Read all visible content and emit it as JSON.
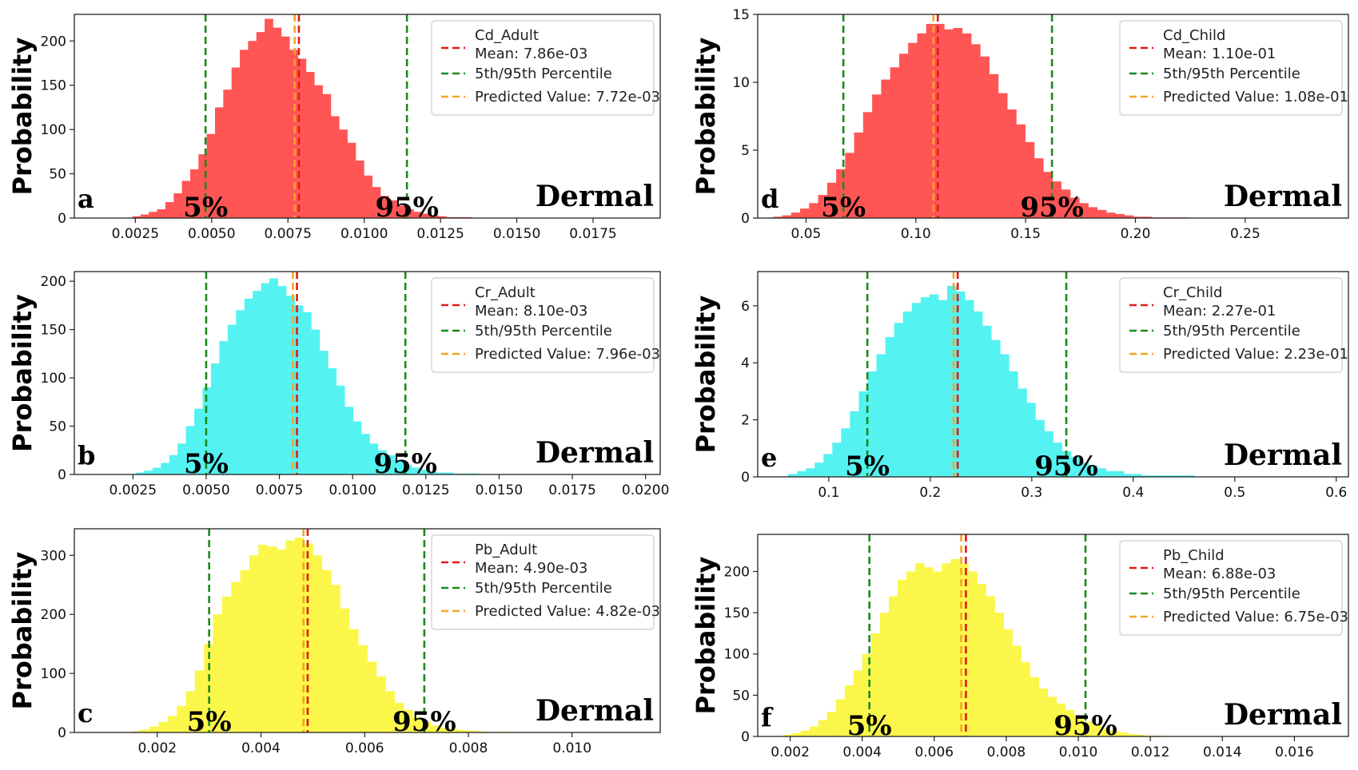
{
  "chart_data": [
    {
      "type": "histogram",
      "panel_letter": "a",
      "ylabel": "Probability",
      "corner_text": "Dermal",
      "p5_text": "5%",
      "p95_text": "95%",
      "bar_color": "#ff5555",
      "legend": {
        "title": "Cd_Adult",
        "mean_label": "Mean: 7.86e-03",
        "pct_label": "5th/95th Percentile",
        "pred_label": "Predicted Value: 7.72e-03"
      },
      "mean": 0.00786,
      "p5": 0.0048,
      "p95": 0.0114,
      "predicted": 0.00772,
      "xlim": [
        0.0005,
        0.0197
      ],
      "ylim": [
        0,
        230
      ],
      "xticks": [
        0.0025,
        0.005,
        0.0075,
        0.01,
        0.0125,
        0.015,
        0.0175
      ],
      "xtick_labels": [
        "0.0025",
        "0.0050",
        "0.0075",
        "0.0100",
        "0.0125",
        "0.0150",
        "0.0175"
      ],
      "yticks": [
        0,
        50,
        100,
        150,
        200
      ],
      "ytick_labels": [
        "0",
        "50",
        "100",
        "150",
        "200"
      ],
      "bin_start": 0.0024,
      "bin_width": 0.000271,
      "values": [
        2,
        4,
        7,
        10,
        18,
        28,
        42,
        55,
        72,
        95,
        125,
        145,
        170,
        190,
        200,
        210,
        225,
        215,
        205,
        190,
        180,
        165,
        150,
        140,
        115,
        100,
        85,
        65,
        48,
        35,
        25,
        20,
        14,
        10,
        7,
        5,
        3,
        2,
        1,
        1,
        1
      ]
    },
    {
      "type": "histogram",
      "panel_letter": "b",
      "ylabel": "Probability",
      "corner_text": "Dermal",
      "p5_text": "5%",
      "p95_text": "95%",
      "bar_color": "#55f2f2",
      "legend": {
        "title": "Cr_Adult",
        "mean_label": "Mean: 8.10e-03",
        "pct_label": "5th/95th Percentile",
        "pred_label": "Predicted Value: 7.96e-03"
      },
      "mean": 0.0081,
      "p5": 0.005,
      "p95": 0.0118,
      "predicted": 0.00796,
      "xlim": [
        0.0005,
        0.0205
      ],
      "ylim": [
        0,
        210
      ],
      "xticks": [
        0.0025,
        0.005,
        0.0075,
        0.01,
        0.0125,
        0.015,
        0.0175,
        0.02
      ],
      "xtick_labels": [
        "0.0025",
        "0.0050",
        "0.0075",
        "0.0100",
        "0.0125",
        "0.0150",
        "0.0175",
        "0.0200"
      ],
      "yticks": [
        0,
        50,
        100,
        150,
        200
      ],
      "ytick_labels": [
        "0",
        "50",
        "100",
        "150",
        "200"
      ],
      "bin_start": 0.0026,
      "bin_width": 0.000285,
      "values": [
        2,
        4,
        7,
        12,
        20,
        32,
        50,
        68,
        90,
        115,
        138,
        155,
        170,
        182,
        190,
        198,
        203,
        195,
        185,
        175,
        168,
        150,
        128,
        110,
        92,
        70,
        55,
        42,
        32,
        25,
        20,
        15,
        10,
        7,
        5,
        3,
        2,
        2,
        1,
        1,
        1
      ]
    },
    {
      "type": "histogram",
      "panel_letter": "c",
      "ylabel": "Probability",
      "corner_text": "Dermal",
      "p5_text": "5%",
      "p95_text": "95%",
      "bar_color": "#fbf74a",
      "legend": {
        "title": "Pb_Adult",
        "mean_label": "Mean: 4.90e-03",
        "pct_label": "5th/95th Percentile",
        "pred_label": "Predicted Value: 4.82e-03"
      },
      "mean": 0.0049,
      "p5": 0.003,
      "p95": 0.00715,
      "predicted": 0.00482,
      "xlim": [
        0.0004,
        0.0117
      ],
      "ylim": [
        0,
        345
      ],
      "xticks": [
        0.002,
        0.004,
        0.006,
        0.008,
        0.01
      ],
      "xtick_labels": [
        "0.002",
        "0.004",
        "0.006",
        "0.008",
        "0.010"
      ],
      "yticks": [
        0,
        100,
        200,
        300
      ],
      "ytick_labels": [
        "0",
        "100",
        "200",
        "300"
      ],
      "bin_start": 0.0015,
      "bin_width": 0.000175,
      "values": [
        2,
        5,
        10,
        18,
        28,
        45,
        70,
        105,
        150,
        200,
        230,
        255,
        275,
        300,
        318,
        315,
        310,
        325,
        330,
        320,
        300,
        275,
        250,
        210,
        175,
        148,
        120,
        95,
        70,
        50,
        38,
        26,
        18,
        12,
        8,
        6,
        4,
        3,
        2,
        1,
        1,
        1
      ]
    },
    {
      "type": "histogram",
      "panel_letter": "d",
      "ylabel": "Probability",
      "corner_text": "Dermal",
      "p5_text": "5%",
      "p95_text": "95%",
      "bar_color": "#ff5555",
      "legend": {
        "title": "Cd_Child",
        "mean_label": "Mean: 1.10e-01",
        "pct_label": "5th/95th Percentile",
        "pred_label": "Predicted Value: 1.08e-01"
      },
      "mean": 0.11,
      "p5": 0.067,
      "p95": 0.162,
      "predicted": 0.108,
      "xlim": [
        0.028,
        0.297
      ],
      "ylim": [
        0,
        15
      ],
      "xticks": [
        0.05,
        0.1,
        0.15,
        0.2,
        0.25
      ],
      "xtick_labels": [
        "0.05",
        "0.10",
        "0.15",
        "0.20",
        "0.25"
      ],
      "yticks": [
        0,
        5,
        10,
        15
      ],
      "ytick_labels": [
        "0",
        "5",
        "10",
        "15"
      ],
      "bin_start": 0.035,
      "bin_width": 0.0041,
      "values": [
        0.1,
        0.2,
        0.4,
        0.7,
        1.1,
        1.7,
        2.6,
        3.6,
        4.8,
        6.3,
        7.8,
        9.1,
        10.2,
        11.1,
        12.1,
        12.9,
        13.6,
        14.3,
        14.3,
        13.9,
        14.0,
        13.6,
        12.8,
        11.9,
        10.6,
        9.2,
        8.0,
        6.9,
        5.6,
        4.4,
        3.4,
        2.7,
        2.1,
        1.5,
        1.1,
        0.8,
        0.6,
        0.4,
        0.3,
        0.2,
        0.1,
        0.1,
        0.05,
        0.05,
        0.05,
        0.05
      ]
    },
    {
      "type": "histogram",
      "panel_letter": "e",
      "ylabel": "Probability",
      "corner_text": "Dermal",
      "p5_text": "5%",
      "p95_text": "95%",
      "bar_color": "#55f2f2",
      "legend": {
        "title": "Cr_Child",
        "mean_label": "Mean: 2.27e-01",
        "pct_label": "5th/95th Percentile",
        "pred_label": "Predicted Value: 2.23e-01"
      },
      "mean": 0.227,
      "p5": 0.138,
      "p95": 0.334,
      "predicted": 0.223,
      "xlim": [
        0.03,
        0.612
      ],
      "ylim": [
        0,
        7.2
      ],
      "xticks": [
        0.1,
        0.2,
        0.3,
        0.4,
        0.5,
        0.6
      ],
      "xtick_labels": [
        "0.1",
        "0.2",
        "0.3",
        "0.4",
        "0.5",
        "0.6"
      ],
      "yticks": [
        0,
        2,
        4,
        6
      ],
      "ytick_labels": [
        "0",
        "2",
        "4",
        "6"
      ],
      "bin_start": 0.06,
      "bin_width": 0.0087,
      "values": [
        0.1,
        0.2,
        0.3,
        0.5,
        0.8,
        1.2,
        1.7,
        2.3,
        3.0,
        3.7,
        4.3,
        4.9,
        5.4,
        5.8,
        6.1,
        6.3,
        6.4,
        6.2,
        6.7,
        6.5,
        6.2,
        5.8,
        5.3,
        4.8,
        4.3,
        3.7,
        3.1,
        2.6,
        2.0,
        1.6,
        1.2,
        0.9,
        0.7,
        0.5,
        0.4,
        0.3,
        0.2,
        0.2,
        0.1,
        0.1,
        0.05,
        0.05,
        0.05,
        0.05,
        0.05,
        0.05
      ]
    },
    {
      "type": "histogram",
      "panel_letter": "f",
      "ylabel": "Probability",
      "corner_text": "Dermal",
      "p5_text": "5%",
      "p95_text": "95%",
      "bar_color": "#fbf74a",
      "legend": {
        "title": "Pb_Child",
        "mean_label": "Mean: 6.88e-03",
        "pct_label": "5th/95th Percentile",
        "pred_label": "Predicted Value: 6.75e-03"
      },
      "mean": 0.00688,
      "p5": 0.0042,
      "p95": 0.0102,
      "predicted": 0.00675,
      "xlim": [
        0.0011,
        0.0175
      ],
      "ylim": [
        0,
        245
      ],
      "xticks": [
        0.002,
        0.004,
        0.006,
        0.008,
        0.01,
        0.012,
        0.014,
        0.016
      ],
      "xtick_labels": [
        "0.002",
        "0.004",
        "0.006",
        "0.008",
        "0.010",
        "0.012",
        "0.014",
        "0.016"
      ],
      "yticks": [
        0,
        50,
        100,
        150,
        200
      ],
      "ytick_labels": [
        "0",
        "50",
        "100",
        "150",
        "200"
      ],
      "bin_start": 0.0018,
      "bin_width": 0.000245,
      "values": [
        2,
        4,
        7,
        12,
        20,
        30,
        45,
        62,
        80,
        100,
        125,
        150,
        170,
        190,
        200,
        210,
        205,
        200,
        210,
        215,
        210,
        200,
        185,
        170,
        150,
        130,
        110,
        90,
        72,
        58,
        48,
        40,
        32,
        25,
        18,
        14,
        10,
        7,
        5,
        3,
        2,
        1,
        1
      ]
    }
  ]
}
